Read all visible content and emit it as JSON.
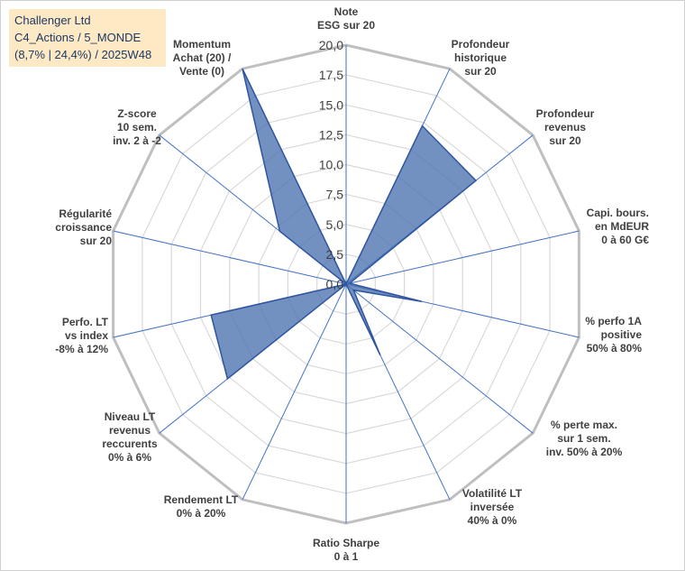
{
  "title_box": {
    "line1": "Challenger Ltd",
    "line2": "C4_Actions / 5_MONDE",
    "line3": "(8,7% | 24,4%) / 2025W48"
  },
  "colors": {
    "fill": "#4a72b0",
    "stroke": "#2f55a0",
    "grid": "#d9d9d9",
    "outer_grid": "#bfbfbf",
    "spoke": "#4472c4",
    "title_bg": "#fde9c4"
  },
  "chart_data": {
    "type": "radar",
    "r_min": 0,
    "r_max": 20,
    "ticks": [
      "0,0",
      "2,5",
      "5,0",
      "7,5",
      "10,0",
      "12,5",
      "15,0",
      "17,5",
      "20,0"
    ],
    "tick_values": [
      0,
      2.5,
      5,
      7.5,
      10,
      12.5,
      15,
      17.5,
      20
    ],
    "axes": [
      {
        "lines": [
          "Note",
          "ESG sur 20"
        ],
        "value": 0
      },
      {
        "lines": [
          "Profondeur",
          "historique",
          "sur 20"
        ],
        "value": 14.7
      },
      {
        "lines": [
          "Profondeur",
          "revenus",
          "sur 20"
        ],
        "value": 13.9
      },
      {
        "lines": [
          "Capi. bours.",
          "en MdEUR",
          "0 à 60 G€"
        ],
        "value": 0.3
      },
      {
        "lines": [
          "% perfo 1A",
          "positive",
          "50% à 80%"
        ],
        "value": 6.5
      },
      {
        "lines": [
          "% perte max.",
          "sur 1 sem.",
          "inv. 50% à 20%"
        ],
        "value": 0.8
      },
      {
        "lines": [
          "Volatilité LT",
          "inversée",
          "40% à 0%"
        ],
        "value": 6.6
      },
      {
        "lines": [
          "Ratio Sharpe",
          "0 à 1"
        ],
        "value": 0
      },
      {
        "lines": [
          "Rendement LT",
          "0% à 20%"
        ],
        "value": 0
      },
      {
        "lines": [
          "Niveau LT",
          "revenus",
          "reccurents",
          "0% à 6%"
        ],
        "value": 12.7
      },
      {
        "lines": [
          "Perfo. LT",
          "vs index",
          "-8% à 12%"
        ],
        "value": 11.6
      },
      {
        "lines": [
          "Régularité",
          "croissance",
          "sur 20"
        ],
        "value": 0
      },
      {
        "lines": [
          "Z-score",
          "10 sem.",
          "inv. 2 à -2"
        ],
        "value": 7.1
      },
      {
        "lines": [
          "Momentum",
          "Achat (20) /",
          "Vente (0)"
        ],
        "value": 20
      }
    ]
  }
}
